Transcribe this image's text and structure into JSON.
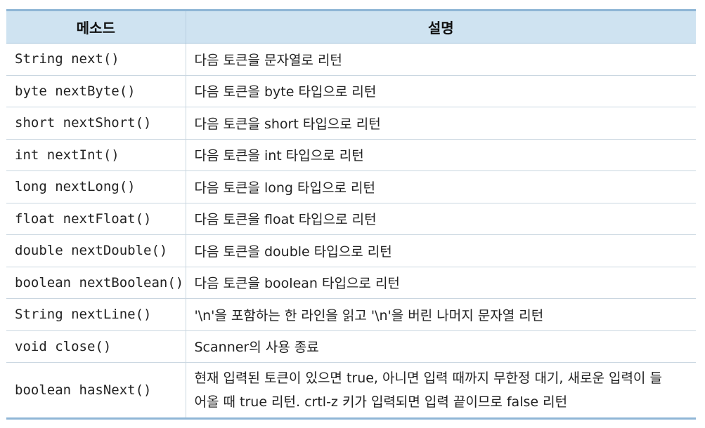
{
  "header": {
    "col_method": "메소드",
    "col_desc": "설명"
  },
  "rows": [
    {
      "method": "String next()",
      "desc": "다음 토큰을 문자열로 리턴"
    },
    {
      "method": "byte nextByte()",
      "desc": "다음 토큰을 byte 타입으로 리턴"
    },
    {
      "method": "short nextShort()",
      "desc": "다음 토큰을 short 타입으로 리턴"
    },
    {
      "method": "int nextInt()",
      "desc": "다음 토큰을 int 타입으로 리턴"
    },
    {
      "method": "long nextLong()",
      "desc": "다음 토큰을 long 타입으로 리턴"
    },
    {
      "method": "float nextFloat()",
      "desc": "다음 토큰을 float 타입으로 리턴"
    },
    {
      "method": "double nextDouble()",
      "desc": "다음 토큰을 double 타입으로 리턴"
    },
    {
      "method": "boolean nextBoolean()",
      "desc": "다음 토큰을 boolean 타입으로 리턴"
    },
    {
      "method": "String nextLine()",
      "desc": "'\\n'을 포함하는 한 라인을 읽고 '\\n'을 버린 나머지 문자열 리턴"
    },
    {
      "method": "void close()",
      "desc": "Scanner의 사용 종료"
    },
    {
      "method": "boolean hasNext()",
      "desc_line1": "현재 입력된 토큰이 있으면 true, 아니면 입력 때까지 무한정 대기, 새로운 입력이 들",
      "desc_line2": "어올 때 true 리턴. crtl-z 키가 입력되면 입력 끝이므로 false 리턴"
    }
  ]
}
